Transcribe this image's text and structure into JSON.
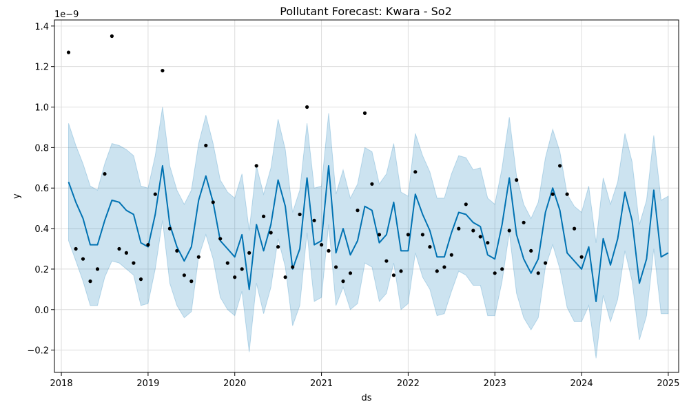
{
  "chart_data": {
    "type": "line",
    "title": "Pollutant Forecast: Kwara - So2",
    "xlabel": "ds",
    "ylabel": "y",
    "y_offset_label": "1e−9",
    "grid": true,
    "xlim": [
      2017.92,
      2025.12
    ],
    "ylim": [
      -0.31,
      1.43
    ],
    "x_ticks": [
      2018,
      2019,
      2020,
      2021,
      2022,
      2023,
      2024,
      2025
    ],
    "x_tick_labels": [
      "2018",
      "2019",
      "2020",
      "2021",
      "2022",
      "2023",
      "2024",
      "2025"
    ],
    "y_ticks": [
      -0.2,
      0.0,
      0.2,
      0.4,
      0.6,
      0.8,
      1.0,
      1.2,
      1.4
    ],
    "y_tick_labels": [
      "−0.2",
      "0.0",
      "0.2",
      "0.4",
      "0.6",
      "0.8",
      "1.0",
      "1.2",
      "1.4"
    ],
    "colors": {
      "forecast_line": "#0072b2",
      "uncertainty_band": "#0072b2",
      "observed_points": "#000000"
    },
    "x": [
      2018.083,
      2018.167,
      2018.25,
      2018.333,
      2018.417,
      2018.5,
      2018.583,
      2018.667,
      2018.75,
      2018.833,
      2018.917,
      2019.0,
      2019.083,
      2019.167,
      2019.25,
      2019.333,
      2019.417,
      2019.5,
      2019.583,
      2019.667,
      2019.75,
      2019.833,
      2019.917,
      2020.0,
      2020.083,
      2020.167,
      2020.25,
      2020.333,
      2020.417,
      2020.5,
      2020.583,
      2020.667,
      2020.75,
      2020.833,
      2020.917,
      2021.0,
      2021.083,
      2021.167,
      2021.25,
      2021.333,
      2021.417,
      2021.5,
      2021.583,
      2021.667,
      2021.75,
      2021.833,
      2021.917,
      2022.0,
      2022.083,
      2022.167,
      2022.25,
      2022.333,
      2022.417,
      2022.5,
      2022.583,
      2022.667,
      2022.75,
      2022.833,
      2022.917,
      2023.0,
      2023.083,
      2023.167,
      2023.25,
      2023.333,
      2023.417,
      2023.5,
      2023.583,
      2023.667,
      2023.75,
      2023.833,
      2023.917,
      2024.0,
      2024.083,
      2024.167,
      2024.25,
      2024.333,
      2024.417,
      2024.5,
      2024.583,
      2024.667,
      2024.75,
      2024.833,
      2024.917,
      2025.0
    ],
    "series": [
      {
        "type": "line",
        "values": [
          0.63,
          0.53,
          0.45,
          0.32,
          0.32,
          0.44,
          0.54,
          0.53,
          0.49,
          0.47,
          0.33,
          0.31,
          0.47,
          0.71,
          0.42,
          0.31,
          0.24,
          0.31,
          0.54,
          0.66,
          0.53,
          0.34,
          0.3,
          0.26,
          0.37,
          0.1,
          0.42,
          0.29,
          0.42,
          0.64,
          0.51,
          0.2,
          0.3,
          0.65,
          0.32,
          0.34,
          0.71,
          0.28,
          0.4,
          0.27,
          0.34,
          0.51,
          0.49,
          0.33,
          0.37,
          0.53,
          0.29,
          0.29,
          0.57,
          0.47,
          0.39,
          0.26,
          0.26,
          0.38,
          0.48,
          0.47,
          0.43,
          0.41,
          0.27,
          0.25,
          0.42,
          0.65,
          0.37,
          0.25,
          0.18,
          0.25,
          0.48,
          0.6,
          0.49,
          0.28,
          0.24,
          0.2,
          0.31,
          0.04,
          0.35,
          0.22,
          0.35,
          0.58,
          0.44,
          0.13,
          0.25,
          0.59,
          0.26,
          0.28
        ]
      },
      {
        "type": "band",
        "upper": [
          0.92,
          0.81,
          0.72,
          0.61,
          0.59,
          0.72,
          0.82,
          0.81,
          0.79,
          0.76,
          0.61,
          0.6,
          0.76,
          1.0,
          0.71,
          0.59,
          0.52,
          0.59,
          0.82,
          0.96,
          0.82,
          0.64,
          0.58,
          0.55,
          0.67,
          0.39,
          0.71,
          0.57,
          0.7,
          0.94,
          0.79,
          0.48,
          0.59,
          0.92,
          0.6,
          0.61,
          0.97,
          0.57,
          0.69,
          0.55,
          0.62,
          0.8,
          0.78,
          0.62,
          0.67,
          0.82,
          0.58,
          0.56,
          0.87,
          0.76,
          0.68,
          0.55,
          0.55,
          0.67,
          0.76,
          0.75,
          0.69,
          0.7,
          0.55,
          0.52,
          0.7,
          0.95,
          0.66,
          0.52,
          0.45,
          0.53,
          0.75,
          0.89,
          0.78,
          0.57,
          0.51,
          0.48,
          0.61,
          0.33,
          0.65,
          0.52,
          0.63,
          0.87,
          0.73,
          0.42,
          0.54,
          0.86,
          0.54,
          0.56
        ],
        "lower": [
          0.34,
          0.24,
          0.14,
          0.02,
          0.02,
          0.16,
          0.24,
          0.23,
          0.2,
          0.17,
          0.02,
          0.03,
          0.2,
          0.44,
          0.13,
          0.02,
          -0.04,
          -0.01,
          0.26,
          0.37,
          0.25,
          0.06,
          0.0,
          -0.03,
          0.09,
          -0.21,
          0.13,
          -0.02,
          0.11,
          0.35,
          0.21,
          -0.08,
          0.02,
          0.38,
          0.04,
          0.06,
          0.42,
          0.02,
          0.11,
          0.0,
          0.03,
          0.23,
          0.21,
          0.04,
          0.08,
          0.23,
          0.0,
          0.03,
          0.28,
          0.16,
          0.1,
          -0.03,
          -0.02,
          0.09,
          0.19,
          0.17,
          0.12,
          0.12,
          -0.03,
          -0.03,
          0.14,
          0.38,
          0.08,
          -0.04,
          -0.1,
          -0.04,
          0.21,
          0.32,
          0.2,
          0.01,
          -0.06,
          -0.06,
          0.02,
          -0.24,
          0.07,
          -0.06,
          0.05,
          0.29,
          0.14,
          -0.15,
          -0.03,
          0.3,
          -0.02,
          -0.02
        ]
      },
      {
        "type": "scatter",
        "x": [
          2018.083,
          2018.167,
          2018.25,
          2018.333,
          2018.417,
          2018.5,
          2018.583,
          2018.667,
          2018.75,
          2018.833,
          2018.917,
          2019.0,
          2019.083,
          2019.167,
          2019.25,
          2019.333,
          2019.417,
          2019.5,
          2019.583,
          2019.667,
          2019.75,
          2019.833,
          2019.917,
          2020.0,
          2020.083,
          2020.167,
          2020.25,
          2020.333,
          2020.417,
          2020.5,
          2020.583,
          2020.667,
          2020.75,
          2020.833,
          2020.917,
          2021.0,
          2021.083,
          2021.167,
          2021.25,
          2021.333,
          2021.417,
          2021.5,
          2021.583,
          2021.667,
          2021.75,
          2021.833,
          2021.917,
          2022.0,
          2022.083,
          2022.167,
          2022.25,
          2022.333,
          2022.417,
          2022.5,
          2022.583,
          2022.667,
          2022.75,
          2022.833,
          2022.917,
          2023.0,
          2023.083,
          2023.167,
          2023.25,
          2023.333,
          2023.417,
          2023.5,
          2023.583,
          2023.667,
          2023.75,
          2023.833,
          2023.917,
          2024.0
        ],
        "values": [
          1.27,
          0.3,
          0.25,
          0.14,
          0.2,
          0.67,
          1.35,
          0.3,
          0.28,
          0.23,
          0.15,
          0.32,
          0.57,
          1.18,
          0.4,
          0.29,
          0.17,
          0.14,
          0.26,
          0.81,
          0.53,
          0.35,
          0.23,
          0.16,
          0.2,
          0.28,
          0.71,
          0.46,
          0.38,
          0.31,
          0.16,
          0.21,
          0.47,
          1.0,
          0.44,
          0.32,
          0.29,
          0.21,
          0.14,
          0.18,
          0.49,
          0.97,
          0.62,
          0.37,
          0.24,
          0.17,
          0.19,
          0.37,
          0.68,
          0.37,
          0.31,
          0.19,
          0.21,
          0.27,
          0.4,
          0.52,
          0.39,
          0.36,
          0.33,
          0.18,
          0.2,
          0.39,
          0.64,
          0.43,
          0.29,
          0.18,
          0.23,
          0.57,
          0.71,
          0.57,
          0.4,
          0.26
        ]
      }
    ]
  }
}
